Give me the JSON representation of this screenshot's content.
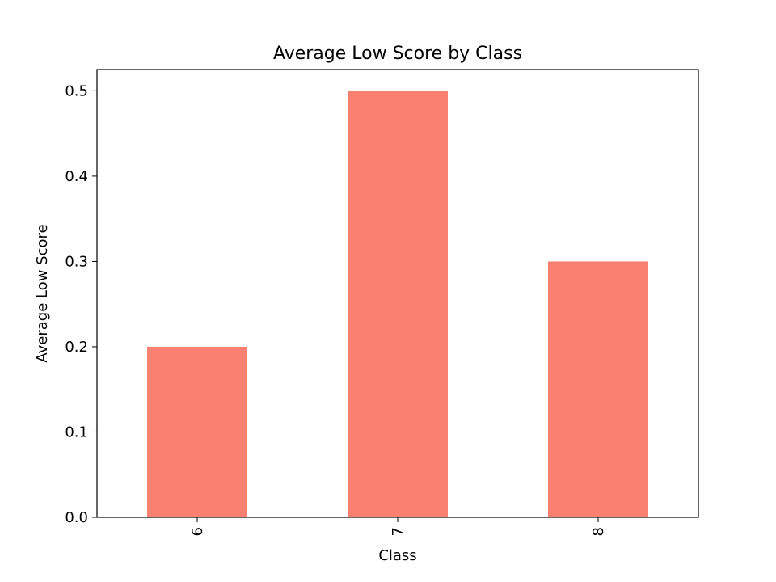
{
  "chart_data": {
    "type": "bar",
    "title": "Average Low Score by Class",
    "xlabel": "Class",
    "ylabel": "Average Low Score",
    "categories": [
      "6",
      "7",
      "8"
    ],
    "values": [
      0.2,
      0.5,
      0.3
    ],
    "ylim": [
      0,
      0.525
    ],
    "yticks": [
      "0.0",
      "0.1",
      "0.2",
      "0.3",
      "0.4",
      "0.5"
    ],
    "bar_color": "#fa8072",
    "grid": false,
    "xtick_rotation": 90
  }
}
